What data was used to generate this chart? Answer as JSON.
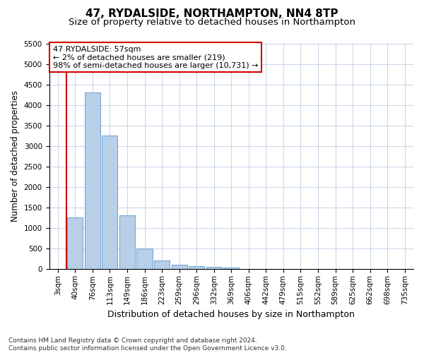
{
  "title": "47, RYDALSIDE, NORTHAMPTON, NN4 8TP",
  "subtitle": "Size of property relative to detached houses in Northampton",
  "xlabel": "Distribution of detached houses by size in Northampton",
  "ylabel": "Number of detached properties",
  "categories": [
    "3sqm",
    "40sqm",
    "76sqm",
    "113sqm",
    "149sqm",
    "186sqm",
    "223sqm",
    "259sqm",
    "296sqm",
    "332sqm",
    "369sqm",
    "406sqm",
    "442sqm",
    "479sqm",
    "515sqm",
    "552sqm",
    "589sqm",
    "625sqm",
    "662sqm",
    "698sqm",
    "735sqm"
  ],
  "values": [
    0,
    1260,
    4300,
    3260,
    1310,
    500,
    215,
    110,
    75,
    55,
    45,
    0,
    0,
    0,
    0,
    0,
    0,
    0,
    0,
    0,
    0
  ],
  "bar_color": "#b8cfe8",
  "bar_edge_color": "#6b9fd4",
  "vline_x": 0.5,
  "vline_color": "#cc0000",
  "annotation_text": "47 RYDALSIDE: 57sqm\n← 2% of detached houses are smaller (219)\n98% of semi-detached houses are larger (10,731) →",
  "annotation_box_color": "#ffffff",
  "annotation_box_edge": "#cc0000",
  "ylim": [
    0,
    5500
  ],
  "yticks": [
    0,
    500,
    1000,
    1500,
    2000,
    2500,
    3000,
    3500,
    4000,
    4500,
    5000,
    5500
  ],
  "footer": "Contains HM Land Registry data © Crown copyright and database right 2024.\nContains public sector information licensed under the Open Government Licence v3.0.",
  "title_fontsize": 11,
  "subtitle_fontsize": 9.5,
  "xlabel_fontsize": 9,
  "ylabel_fontsize": 8.5,
  "tick_fontsize": 7.5,
  "footer_fontsize": 6.5,
  "background_color": "#ffffff",
  "grid_color": "#c8d4e8"
}
